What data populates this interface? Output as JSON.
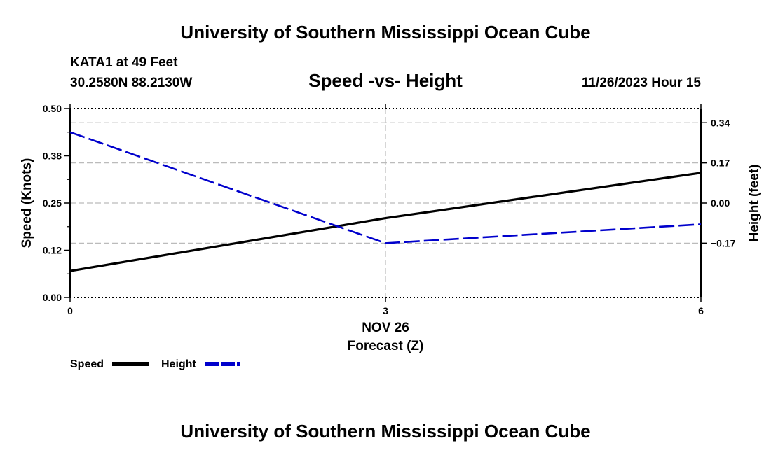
{
  "header": {
    "title": "University of Southern Mississippi Ocean Cube",
    "station": "KATA1 at 49 Feet",
    "coords": "30.2580N  88.2130W",
    "datetime": "11/26/2023 Hour 15",
    "footer_title": "University of Southern Mississippi Ocean Cube"
  },
  "chart_data": {
    "type": "line",
    "title": "Speed -vs- Height",
    "xlabel": "Forecast (Z)",
    "xdate": "NOV 26",
    "xlim": [
      0,
      6
    ],
    "x_ticks": [
      "0",
      "3",
      "6"
    ],
    "ylabel_left": "Speed (Knots)",
    "ylim_left": [
      0.0,
      0.5
    ],
    "yticks_left": [
      "0.00",
      "0.12",
      "0.25",
      "0.38",
      "0.50"
    ],
    "ylabel_right": "Height (feet)",
    "ylim_right": [
      -0.4,
      0.4
    ],
    "yticks_right": [
      "-0.17",
      "0.00",
      "0.17",
      "0.34"
    ],
    "yticks_right_values": [
      -0.17,
      0.0,
      0.17,
      0.34
    ],
    "grid": true,
    "series": [
      {
        "name": "Speed",
        "axis": "left",
        "color": "#000000",
        "style": "solid",
        "x": [
          0,
          3,
          6
        ],
        "values": [
          0.07,
          0.21,
          0.33
        ]
      },
      {
        "name": "Height",
        "axis": "right",
        "color": "#0000cc",
        "style": "dashed",
        "x": [
          0,
          3,
          6
        ],
        "values": [
          0.3,
          -0.17,
          -0.09
        ]
      }
    ],
    "legend": {
      "placement": "bottom-left"
    }
  }
}
